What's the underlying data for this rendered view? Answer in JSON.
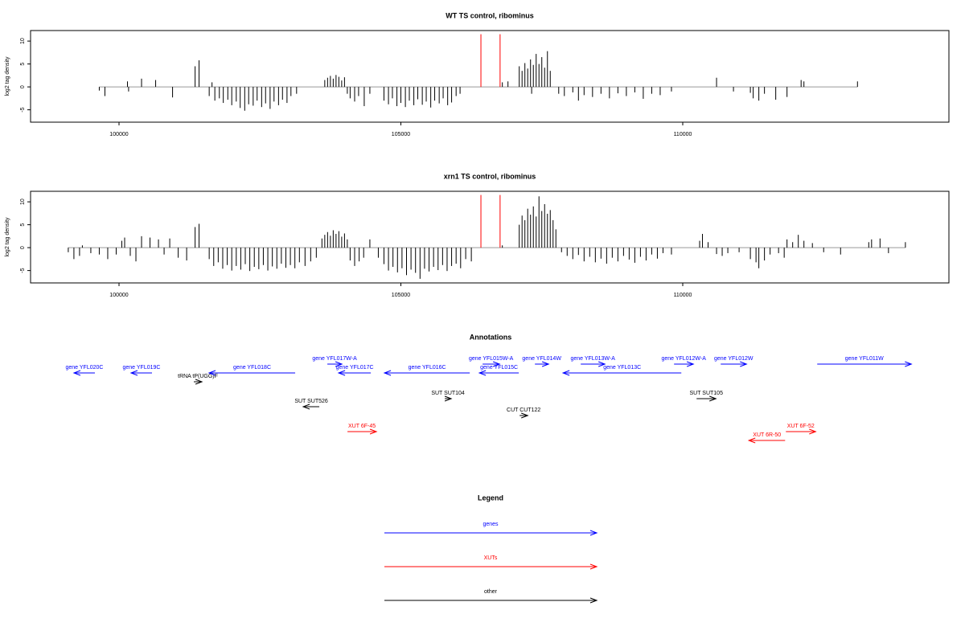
{
  "chart_data": [
    {
      "type": "bar",
      "title": "WT TS control, ribominus",
      "ylabel": "log2 tag density",
      "color": "#000000",
      "xlim": [
        98431,
        114722
      ],
      "xticks": [
        100000,
        105000,
        110000
      ],
      "ylim": [
        -7.7,
        12.3
      ],
      "yticks": [
        -5,
        0,
        5,
        10
      ],
      "x": [
        99650,
        99750,
        100150,
        100170,
        100400,
        100650,
        100950,
        101350,
        101420,
        101600,
        101650,
        101700,
        101780,
        101850,
        101930,
        102000,
        102080,
        102150,
        102230,
        102300,
        102380,
        102450,
        102530,
        102600,
        102680,
        102750,
        102830,
        102900,
        102980,
        103050,
        103150,
        103650,
        103700,
        103750,
        103800,
        103850,
        103900,
        103950,
        104000,
        104050,
        104100,
        104180,
        104250,
        104350,
        104450,
        104700,
        104780,
        104850,
        104930,
        105000,
        105080,
        105150,
        105230,
        105300,
        105380,
        105450,
        105530,
        105600,
        105680,
        105750,
        105830,
        105900,
        105980,
        106050,
        106800,
        106900,
        107100,
        107150,
        107200,
        107250,
        107300,
        107320,
        107350,
        107400,
        107450,
        107500,
        107550,
        107600,
        107650,
        107800,
        107900,
        108050,
        108150,
        108250,
        108400,
        108550,
        108700,
        108850,
        109000,
        109150,
        109300,
        109450,
        109600,
        109800,
        110600,
        110900,
        111200,
        111250,
        111350,
        111450,
        111650,
        111850,
        112100,
        112150,
        113100
      ],
      "values": [
        -0.8,
        -2,
        1.2,
        -1,
        1.8,
        1.5,
        -2.3,
        4.5,
        5.8,
        -2,
        1,
        -3,
        -2.5,
        -3.5,
        -2.8,
        -4,
        -3.2,
        -4.6,
        -5.2,
        -3.8,
        -4.1,
        -3,
        -4.4,
        -3.6,
        -4.8,
        -3.2,
        -4,
        -2.8,
        -3.5,
        -2,
        -1.5,
        1.5,
        2,
        2.4,
        1.8,
        2.6,
        2.2,
        1.4,
        2.1,
        -1.5,
        -2.5,
        -3.2,
        -2,
        -4.2,
        -1.5,
        -3,
        -3.8,
        -2.5,
        -4.2,
        -3.5,
        -4.4,
        -3,
        -4,
        -2.7,
        -3.9,
        -3.2,
        -4.5,
        -3,
        -3.6,
        -2.5,
        -4,
        -3.4,
        -2,
        -1.5,
        1,
        1.2,
        4.5,
        3.5,
        5.2,
        4,
        6,
        -1.5,
        4.8,
        7.2,
        5,
        6.5,
        4.2,
        7.8,
        3.5,
        -1.5,
        -2,
        -1.2,
        -3,
        -1.8,
        -2.2,
        -1.5,
        -2.5,
        -1.4,
        -2,
        -1.2,
        -2.6,
        -1.5,
        -1.8,
        -1,
        2,
        -1,
        -1.3,
        -2.5,
        -3,
        -1.5,
        -2.8,
        -2.2,
        1.5,
        1.2,
        1.2
      ],
      "markers": {
        "color": "#ff0000",
        "x": [
          106420,
          106760
        ],
        "values": [
          11.5,
          11.5
        ]
      }
    },
    {
      "type": "bar",
      "title": "xrn1 TS control, ribominus",
      "ylabel": "log2 tag density",
      "color": "#000000",
      "xlim": [
        98431,
        114722
      ],
      "xticks": [
        100000,
        105000,
        110000
      ],
      "ylim": [
        -7.7,
        12.3
      ],
      "yticks": [
        -5,
        0,
        5,
        10
      ],
      "x": [
        99100,
        99200,
        99300,
        99350,
        99500,
        99650,
        99800,
        99950,
        100050,
        100100,
        100200,
        100300,
        100400,
        100550,
        100700,
        100800,
        100900,
        101050,
        101200,
        101350,
        101420,
        101600,
        101680,
        101760,
        101840,
        101920,
        102000,
        102080,
        102160,
        102240,
        102320,
        102400,
        102480,
        102560,
        102640,
        102720,
        102800,
        102880,
        102960,
        103040,
        103120,
        103200,
        103300,
        103400,
        103500,
        103600,
        103650,
        103700,
        103750,
        103800,
        103850,
        103900,
        103950,
        104000,
        104050,
        104100,
        104180,
        104260,
        104340,
        104450,
        104600,
        104700,
        104780,
        104860,
        104940,
        105020,
        105100,
        105180,
        105260,
        105340,
        105420,
        105500,
        105580,
        105660,
        105740,
        105820,
        105900,
        105980,
        106060,
        106150,
        106250,
        106800,
        107100,
        107150,
        107200,
        107250,
        107300,
        107350,
        107400,
        107450,
        107500,
        107550,
        107600,
        107650,
        107700,
        107750,
        107850,
        107950,
        108050,
        108150,
        108250,
        108350,
        108450,
        108550,
        108650,
        108750,
        108850,
        108950,
        109050,
        109150,
        109250,
        109350,
        109450,
        109550,
        109650,
        109800,
        110300,
        110350,
        110450,
        110600,
        110700,
        110800,
        111000,
        111200,
        111300,
        111350,
        111450,
        111550,
        111700,
        111800,
        111850,
        111950,
        112050,
        112150,
        112300,
        112500,
        112800,
        113300,
        113350,
        113500,
        113650,
        113950
      ],
      "values": [
        -1,
        -2.5,
        -1.8,
        0.5,
        -1.2,
        -1.5,
        -2.5,
        -1.5,
        1.5,
        2.2,
        -1.8,
        -3,
        2.5,
        2.2,
        1.8,
        -1.5,
        2,
        -2.2,
        -2.8,
        4.5,
        5.2,
        -2.5,
        -4,
        -3.2,
        -4.6,
        -3.8,
        -5,
        -4,
        -4.8,
        -3.6,
        -5.1,
        -4.2,
        -4.7,
        -3.8,
        -5,
        -4.1,
        -4.6,
        -3.5,
        -4.4,
        -3.8,
        -4.5,
        -3.2,
        -4,
        -3,
        -2.2,
        2,
        2.8,
        3.4,
        2.6,
        3.8,
        3,
        3.6,
        2.4,
        3.1,
        1.8,
        -2.8,
        -4,
        -3,
        -2.2,
        1.8,
        -2.2,
        -3.6,
        -5,
        -4.2,
        -5.4,
        -4.5,
        -6,
        -4.8,
        -5.5,
        -6.8,
        -4.6,
        -5.2,
        -4.2,
        -4.9,
        -3.8,
        -5.1,
        -4,
        -3.5,
        -4.5,
        -2.5,
        -3,
        0.5,
        5,
        7,
        6,
        8.5,
        7.2,
        9,
        6.8,
        11.2,
        8,
        9.5,
        7.4,
        8.2,
        6,
        4,
        -1,
        -1.8,
        -2.5,
        -1.6,
        -3,
        -2,
        -3.2,
        -2.4,
        -3.5,
        -2.2,
        -3,
        -1.8,
        -2.6,
        -3.3,
        -2,
        -2.8,
        -1.5,
        -2.4,
        -1.2,
        -1.5,
        1.5,
        3,
        1.2,
        -1.4,
        -1.8,
        -1.2,
        -1,
        -2.5,
        -3.2,
        -4.5,
        -2.8,
        -1.5,
        -1.2,
        -2.2,
        1.8,
        1.2,
        2.8,
        1.5,
        1,
        -1,
        -1.5,
        1.2,
        1.8,
        2,
        -1.2,
        1.2
      ],
      "markers": {
        "color": "#ff0000",
        "x": [
          106420,
          106760
        ],
        "values": [
          11.5,
          11.5
        ]
      }
    }
  ],
  "annotations": {
    "title": "Annotations",
    "features": [
      {
        "label": "gene YFL020C",
        "start": 99201,
        "end": 99572,
        "strand": "-",
        "color": "#0000ff"
      },
      {
        "label": "gene YFL019C",
        "start": 100214,
        "end": 100585,
        "strand": "-",
        "color": "#0000ff"
      },
      {
        "label": "tRNA tP(UGG)F",
        "start": 101327,
        "end": 101470,
        "strand": "+",
        "color": "#000000"
      },
      {
        "label": "gene YFL018C",
        "start": 101598,
        "end": 103125,
        "strand": "-",
        "color": "#0000ff"
      },
      {
        "label": "gene YFL017W-A",
        "start": 103696,
        "end": 103953,
        "strand": "+",
        "color": "#0000ff"
      },
      {
        "label": "gene YFL017C",
        "start": 103896,
        "end": 104467,
        "strand": "-",
        "color": "#0000ff"
      },
      {
        "label": "SUT SUT526",
        "start": 103268,
        "end": 103553,
        "strand": "-",
        "color": "#000000"
      },
      {
        "label": "XUT 6F-45",
        "start": 104053,
        "end": 104566,
        "strand": "+",
        "color": "#ff0000"
      },
      {
        "label": "gene YFL016C",
        "start": 104709,
        "end": 106222,
        "strand": "-",
        "color": "#0000ff"
      },
      {
        "label": "gene YFL015W-A",
        "start": 106450,
        "end": 106750,
        "strand": "+",
        "color": "#0000ff"
      },
      {
        "label": "gene YFL015C",
        "start": 106393,
        "end": 107092,
        "strand": "-",
        "color": "#0000ff"
      },
      {
        "label": "SUT SUT104",
        "start": 105779,
        "end": 105893,
        "strand": "+",
        "color": "#000000"
      },
      {
        "label": "CUT CUT122",
        "start": 107107,
        "end": 107250,
        "strand": "+",
        "color": "#000000"
      },
      {
        "label": "gene YFL014W",
        "start": 107378,
        "end": 107620,
        "strand": "+",
        "color": "#0000ff"
      },
      {
        "label": "gene YFL013W-A",
        "start": 108191,
        "end": 108619,
        "strand": "+",
        "color": "#0000ff"
      },
      {
        "label": "gene YFL013C",
        "start": 107877,
        "end": 109975,
        "strand": "-",
        "color": "#0000ff"
      },
      {
        "label": "gene YFL012W-A",
        "start": 109846,
        "end": 110188,
        "strand": "+",
        "color": "#0000ff"
      },
      {
        "label": "gene YFL012W",
        "start": 110674,
        "end": 111131,
        "strand": "+",
        "color": "#0000ff"
      },
      {
        "label": "SUT SUT105",
        "start": 110246,
        "end": 110588,
        "strand": "+",
        "color": "#000000"
      },
      {
        "label": "XUT 6F-52",
        "start": 111830,
        "end": 112358,
        "strand": "+",
        "color": "#ff0000"
      },
      {
        "label": "XUT 6R-50",
        "start": 111173,
        "end": 111816,
        "strand": "-",
        "color": "#ff0000"
      },
      {
        "label": "gene YFL011W",
        "start": 112386,
        "end": 114056,
        "strand": "+",
        "color": "#0000ff"
      }
    ]
  },
  "legend": {
    "title": "Legend",
    "items": [
      {
        "name": "genes",
        "color": "#0000ff"
      },
      {
        "name": "XUTs",
        "color": "#ff0000"
      },
      {
        "name": "other",
        "color": "#000000"
      }
    ]
  }
}
